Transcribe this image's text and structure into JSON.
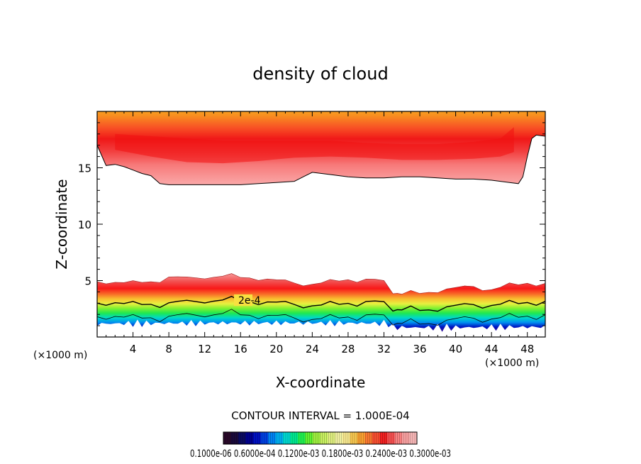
{
  "chart_data": {
    "type": "heatmap",
    "title": "density of cloud",
    "xlabel": "X-coordinate",
    "ylabel": "Z-coordinate",
    "x_unit_left": "(×1000 m)",
    "x_unit_right": "(×1000 m)",
    "xlim": [
      0,
      50
    ],
    "ylim": [
      0,
      20
    ],
    "x_ticks": [
      4,
      8,
      12,
      16,
      20,
      24,
      28,
      32,
      36,
      40,
      44,
      48
    ],
    "x_tick_labels": [
      "4",
      "8",
      "12",
      "16",
      "20",
      "24",
      "28",
      "32",
      "36",
      "40",
      "44",
      "48"
    ],
    "y_ticks": [
      5,
      10,
      15
    ],
    "y_tick_labels": [
      "5",
      "10",
      "15"
    ],
    "contour_label": "2e-4",
    "contour_interval_text": "CONTOUR INTERVAL = 1.000E-04",
    "colorbar_labels_text": "0.1000e-06 0.6000e-04 0.1200e-03 0.1800e-03 0.2400e-03 0.3000e-03",
    "colorbar_colors": [
      "#2a0a2a",
      "#1a0a3a",
      "#0a0a60",
      "#000090",
      "#0010c0",
      "#0040e0",
      "#0080f0",
      "#00b0f0",
      "#00d8d0",
      "#00e890",
      "#20f050",
      "#60f030",
      "#a0f040",
      "#c8f060",
      "#e0f080",
      "#f0f0a0",
      "#f8e890",
      "#f8c850",
      "#f8a030",
      "#f87830",
      "#f85030",
      "#f02020",
      "#f85050",
      "#f88080",
      "#f8a0a0",
      "#f8b8b8"
    ],
    "upper_band": {
      "z_range_approx": [
        13.5,
        20
      ],
      "boundary_x": [
        0,
        1,
        2,
        3,
        4,
        5,
        6,
        7,
        8,
        10,
        12,
        14,
        16,
        18,
        20,
        22,
        23,
        24,
        26,
        28,
        30,
        32,
        34,
        36,
        38,
        40,
        42,
        44,
        46,
        47,
        47.5,
        48,
        48.5,
        49,
        50
      ],
      "boundary_z": [
        17.0,
        15.2,
        15.3,
        15.1,
        14.8,
        14.5,
        14.3,
        13.6,
        13.5,
        13.5,
        13.5,
        13.5,
        13.5,
        13.6,
        13.7,
        13.8,
        14.2,
        14.6,
        14.4,
        14.2,
        14.1,
        14.1,
        14.2,
        14.2,
        14.1,
        14.0,
        14.0,
        13.9,
        13.7,
        13.6,
        14.2,
        16.0,
        17.6,
        17.9,
        17.8
      ],
      "peak_values_approx": "3.0e-4 core near z ~ 16"
    },
    "lower_band": {
      "z_range_approx": [
        0.5,
        5.5
      ],
      "top_x": [
        0,
        2,
        4,
        6,
        8,
        10,
        12,
        14,
        16,
        18,
        20,
        22,
        24,
        26,
        28,
        30,
        32,
        33,
        34,
        36,
        38,
        40,
        42,
        44,
        46,
        48,
        50
      ],
      "top_z": [
        4.9,
        4.9,
        4.8,
        4.9,
        5.3,
        5.2,
        5.3,
        5.4,
        5.3,
        5.2,
        5.0,
        4.8,
        4.7,
        4.9,
        5.1,
        5.1,
        4.9,
        4.0,
        3.8,
        3.9,
        4.1,
        4.3,
        4.5,
        4.2,
        4.6,
        4.8,
        4.7
      ],
      "contour_2e4_z": [
        3.0,
        3.1,
        2.9,
        2.9,
        3.0,
        3.1,
        3.2,
        3.3,
        3.2,
        3.1,
        3.0,
        2.9,
        2.8,
        2.9,
        3.0,
        3.1,
        3.0,
        2.5,
        2.4,
        2.4,
        2.5,
        2.7,
        2.9,
        2.8,
        3.0,
        3.1,
        3.1
      ]
    }
  }
}
